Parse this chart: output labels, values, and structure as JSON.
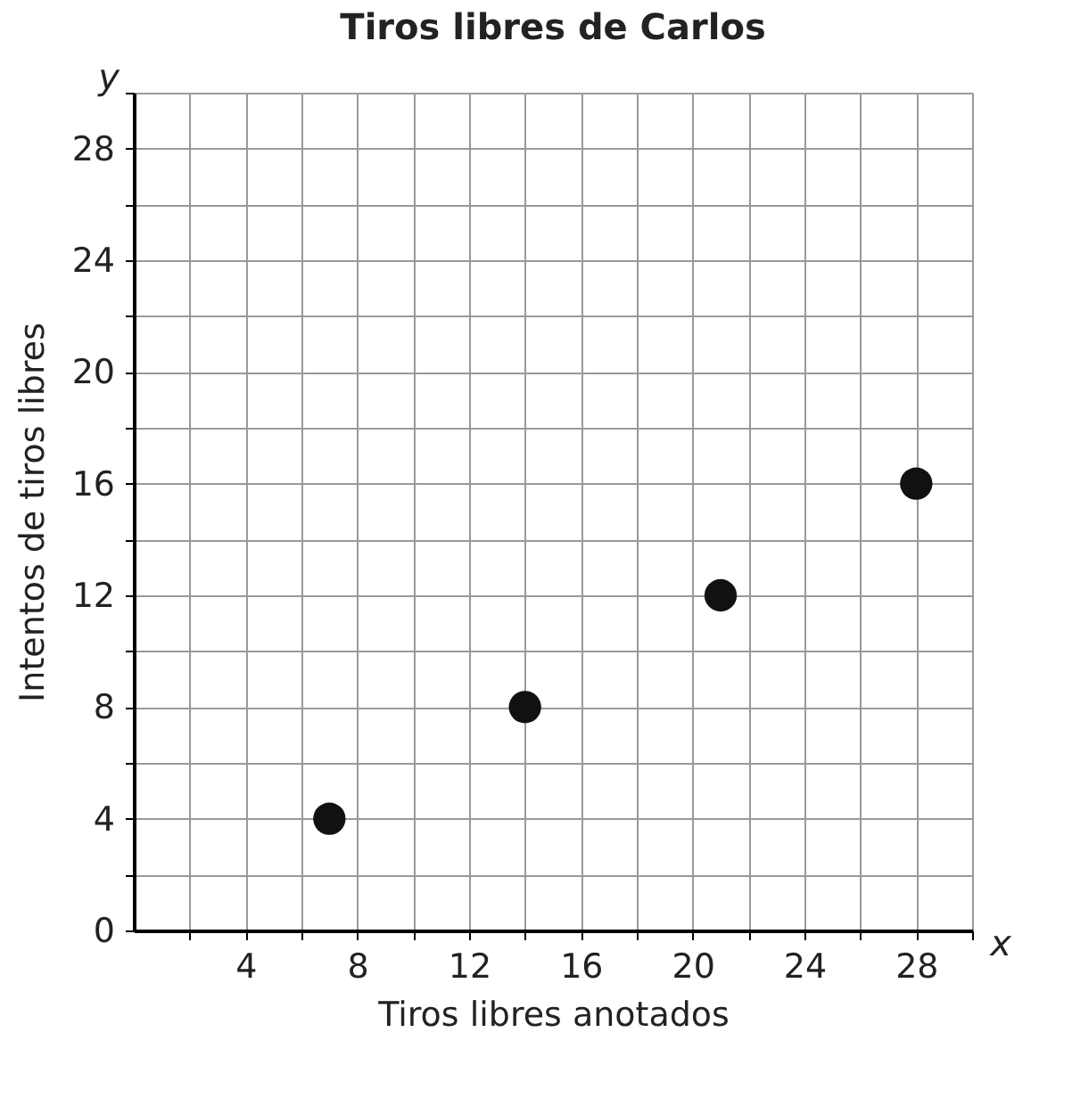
{
  "chart_data": {
    "type": "scatter",
    "title": "Tiros libres de Carlos",
    "xlabel": "Tiros libres anotados",
    "ylabel": "Intentos de tiros libres",
    "annotations": [
      "y",
      "x"
    ],
    "x": [
      7,
      14,
      21,
      28
    ],
    "series": [
      {
        "color": "#111111",
        "values": [
          4,
          8,
          12,
          16
        ]
      }
    ],
    "xlim": [
      0,
      30
    ],
    "ylim": [
      0,
      30
    ],
    "xticks": [
      {
        "value": 2,
        "label": null
      },
      4,
      {
        "value": 6,
        "label": null
      },
      8,
      {
        "value": 10,
        "label": null
      },
      12,
      {
        "value": 14,
        "label": null
      },
      16,
      {
        "value": 18,
        "label": null
      },
      20,
      {
        "value": 22,
        "label": null
      },
      24,
      {
        "value": 26,
        "label": null
      },
      28,
      {
        "value": 30,
        "label": null
      }
    ],
    "yticks": [
      0,
      {
        "value": 2,
        "label": null
      },
      4,
      {
        "value": 6,
        "label": null
      },
      8,
      {
        "value": 10,
        "label": null
      },
      12,
      {
        "value": 14,
        "label": null
      },
      16,
      {
        "value": 18,
        "label": null
      },
      20,
      {
        "value": 22,
        "label": null
      },
      24,
      {
        "value": 26,
        "label": null
      },
      28,
      {
        "value": 30,
        "label": null
      }
    ],
    "grid": true,
    "marker": "circle"
  }
}
